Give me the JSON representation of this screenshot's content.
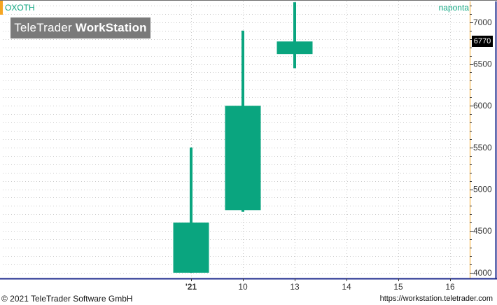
{
  "header": {
    "left_label": "OXOTH",
    "right_label": "naponta"
  },
  "logo": {
    "part1": "TeleTrader ",
    "part2": "WorkStation"
  },
  "price_tag": "6770",
  "footer": {
    "copyright": "© 2021  TeleTrader Software GmbH",
    "url": "https://workstation.teletrader.com"
  },
  "colors": {
    "candle": "#0aa57f",
    "axis_line": "#1c2a8c",
    "grid": "#c9c9c9"
  },
  "chart_data": {
    "type": "candlestick",
    "x_ticks": [
      "'21",
      "10",
      "13",
      "14",
      "15",
      "16"
    ],
    "y_ticks": [
      4000,
      4500,
      5000,
      5500,
      6000,
      6500,
      7000
    ],
    "ylim": [
      3940,
      7250
    ],
    "candles": [
      {
        "slot": 0,
        "open": 4000,
        "close": 4600,
        "low": 4000,
        "high": 5500
      },
      {
        "slot": 1,
        "open": 4750,
        "close": 6000,
        "low": 4730,
        "high": 6900
      },
      {
        "slot": 2,
        "open": 6620,
        "close": 6770,
        "low": 6450,
        "high": 7240
      }
    ],
    "last_price": 6770
  }
}
